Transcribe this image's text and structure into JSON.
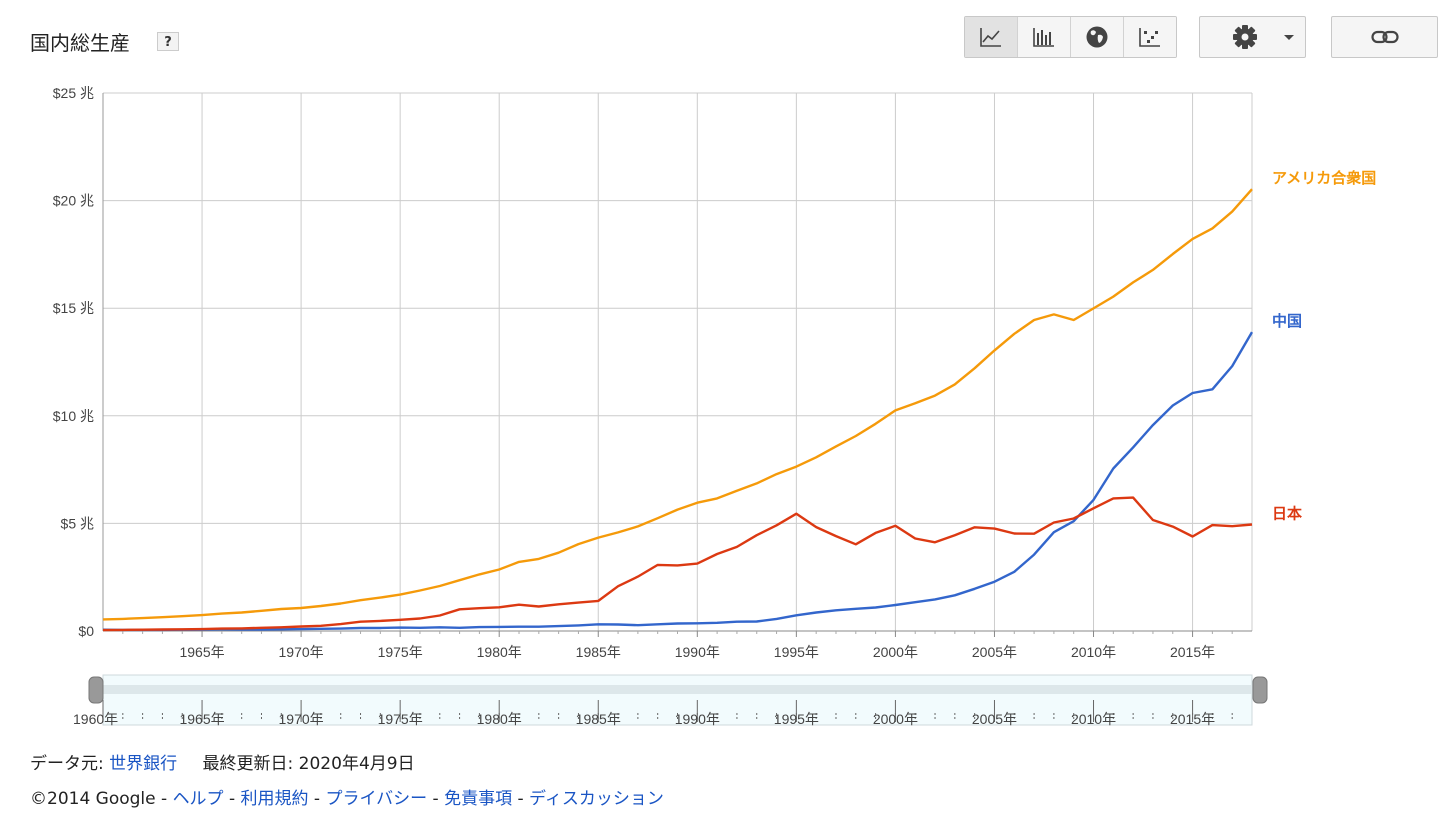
{
  "header": {
    "title": "国内総生産",
    "help_label": "?"
  },
  "toolbar": {
    "chart_types": [
      {
        "name": "line-chart",
        "icon": "line-chart-icon",
        "active": true
      },
      {
        "name": "bar-chart",
        "icon": "bar-chart-icon",
        "active": false
      },
      {
        "name": "map",
        "icon": "globe-icon",
        "active": false
      },
      {
        "name": "scatter-chart",
        "icon": "scatter-chart-icon",
        "active": false
      }
    ],
    "settings_icon": "gear-icon",
    "link_icon": "link-icon"
  },
  "colors": {
    "us": "#f59a0a",
    "china": "#3366cc",
    "japan": "#dc3912",
    "grid": "#cccccc",
    "link": "#1a55c4"
  },
  "chart_data": {
    "type": "line",
    "x_start": 1960,
    "x_end": 2018,
    "ylim": [
      0,
      25
    ],
    "yticks": [
      {
        "v": 0,
        "label": "$0"
      },
      {
        "v": 5,
        "label": "$5 兆"
      },
      {
        "v": 10,
        "label": "$10 兆"
      },
      {
        "v": 15,
        "label": "$15 兆"
      },
      {
        "v": 20,
        "label": "$20 兆"
      },
      {
        "v": 25,
        "label": "$25 兆"
      }
    ],
    "xticks": [
      {
        "v": 1965,
        "label": "1965年"
      },
      {
        "v": 1970,
        "label": "1970年"
      },
      {
        "v": 1975,
        "label": "1975年"
      },
      {
        "v": 1980,
        "label": "1980年"
      },
      {
        "v": 1985,
        "label": "1985年"
      },
      {
        "v": 1990,
        "label": "1990年"
      },
      {
        "v": 1995,
        "label": "1995年"
      },
      {
        "v": 2000,
        "label": "2000年"
      },
      {
        "v": 2005,
        "label": "2005年"
      },
      {
        "v": 2010,
        "label": "2010年"
      },
      {
        "v": 2015,
        "label": "2015年"
      }
    ],
    "series": [
      {
        "name": "アメリカ合衆国",
        "key": "us",
        "values": [
          0.54,
          0.56,
          0.6,
          0.64,
          0.69,
          0.74,
          0.81,
          0.86,
          0.94,
          1.02,
          1.07,
          1.16,
          1.28,
          1.43,
          1.55,
          1.69,
          1.88,
          2.09,
          2.36,
          2.63,
          2.86,
          3.21,
          3.35,
          3.64,
          4.04,
          4.34,
          4.58,
          4.86,
          5.24,
          5.64,
          5.96,
          6.16,
          6.52,
          6.86,
          7.29,
          7.64,
          8.07,
          8.58,
          9.06,
          9.63,
          10.25,
          10.58,
          10.94,
          11.46,
          12.21,
          13.04,
          13.81,
          14.45,
          14.71,
          14.45,
          14.99,
          15.54,
          16.2,
          16.78,
          17.52,
          18.22,
          18.71,
          19.49,
          20.53
        ]
      },
      {
        "name": "中国",
        "key": "china",
        "values": [
          0.06,
          0.05,
          0.05,
          0.05,
          0.06,
          0.07,
          0.08,
          0.07,
          0.07,
          0.08,
          0.09,
          0.1,
          0.11,
          0.14,
          0.14,
          0.16,
          0.15,
          0.17,
          0.15,
          0.18,
          0.19,
          0.2,
          0.2,
          0.23,
          0.26,
          0.31,
          0.3,
          0.27,
          0.31,
          0.35,
          0.36,
          0.38,
          0.43,
          0.44,
          0.56,
          0.73,
          0.86,
          0.96,
          1.03,
          1.09,
          1.21,
          1.34,
          1.47,
          1.66,
          1.96,
          2.29,
          2.75,
          3.55,
          4.59,
          5.1,
          6.09,
          7.55,
          8.53,
          9.57,
          10.48,
          11.06,
          11.23,
          12.31,
          13.89
        ]
      },
      {
        "name": "日本",
        "key": "japan",
        "values": [
          0.04,
          0.05,
          0.06,
          0.07,
          0.08,
          0.09,
          0.11,
          0.12,
          0.15,
          0.17,
          0.21,
          0.24,
          0.32,
          0.43,
          0.47,
          0.52,
          0.58,
          0.72,
          1.01,
          1.06,
          1.1,
          1.22,
          1.14,
          1.24,
          1.32,
          1.4,
          2.08,
          2.53,
          3.07,
          3.05,
          3.13,
          3.58,
          3.91,
          4.45,
          4.91,
          5.45,
          4.83,
          4.41,
          4.03,
          4.56,
          4.89,
          4.3,
          4.12,
          4.45,
          4.82,
          4.76,
          4.53,
          4.52,
          5.04,
          5.23,
          5.7,
          6.16,
          6.2,
          5.16,
          4.85,
          4.39,
          4.92,
          4.87,
          4.95
        ]
      }
    ]
  },
  "range": {
    "start_label": "1960年"
  },
  "footer": {
    "source_label": "データ元:",
    "source_link": "世界銀行",
    "updated": "最終更新日: 2020年4月9日",
    "copyright": "©2014 Google -",
    "links": [
      "ヘルプ",
      "利用規約",
      "プライバシー",
      "免責事項",
      "ディスカッション"
    ],
    "sep": "-"
  }
}
